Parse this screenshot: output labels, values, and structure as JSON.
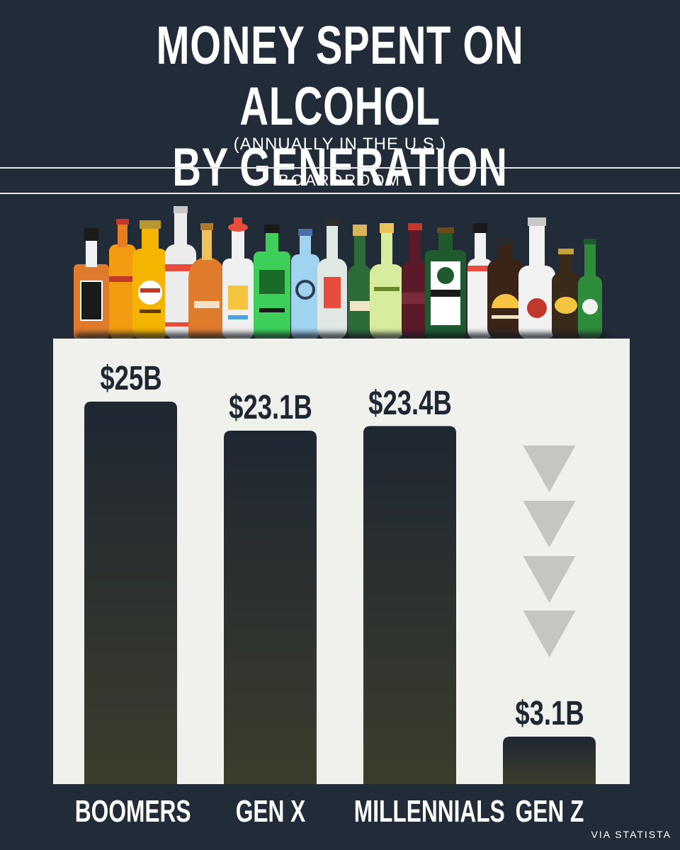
{
  "header": {
    "title": "MONEY SPENT ON ALCOHOL\nBY GENERATION",
    "subtitle": "(ANNUALLY IN THE U.S.)",
    "brand": "BOARDROOM"
  },
  "footer": {
    "source": "VIA STATISTA"
  },
  "colors": {
    "background": "#222b38",
    "panel": "#f0f0ec",
    "bar_top": "#1f2733",
    "bar_bottom": "#3b3d2c",
    "arrow": "#c5c5c2"
  },
  "chart_data": {
    "type": "bar",
    "title": "MONEY SPENT ON ALCOHOL BY GENERATION",
    "subtitle": "(ANNUALLY IN THE U.S.)",
    "categories": [
      "BOOMERS",
      "GEN X",
      "MILLENNIALS",
      "GEN Z"
    ],
    "values": [
      25,
      23.1,
      23.4,
      3.1
    ],
    "value_labels": [
      "$25B",
      "$23.1B",
      "$23.4B",
      "$3.1B"
    ],
    "unit": "billion USD",
    "ylim": [
      0,
      25
    ],
    "grid": false,
    "legend": "none",
    "annotation": "downward arrows above GEN Z"
  }
}
